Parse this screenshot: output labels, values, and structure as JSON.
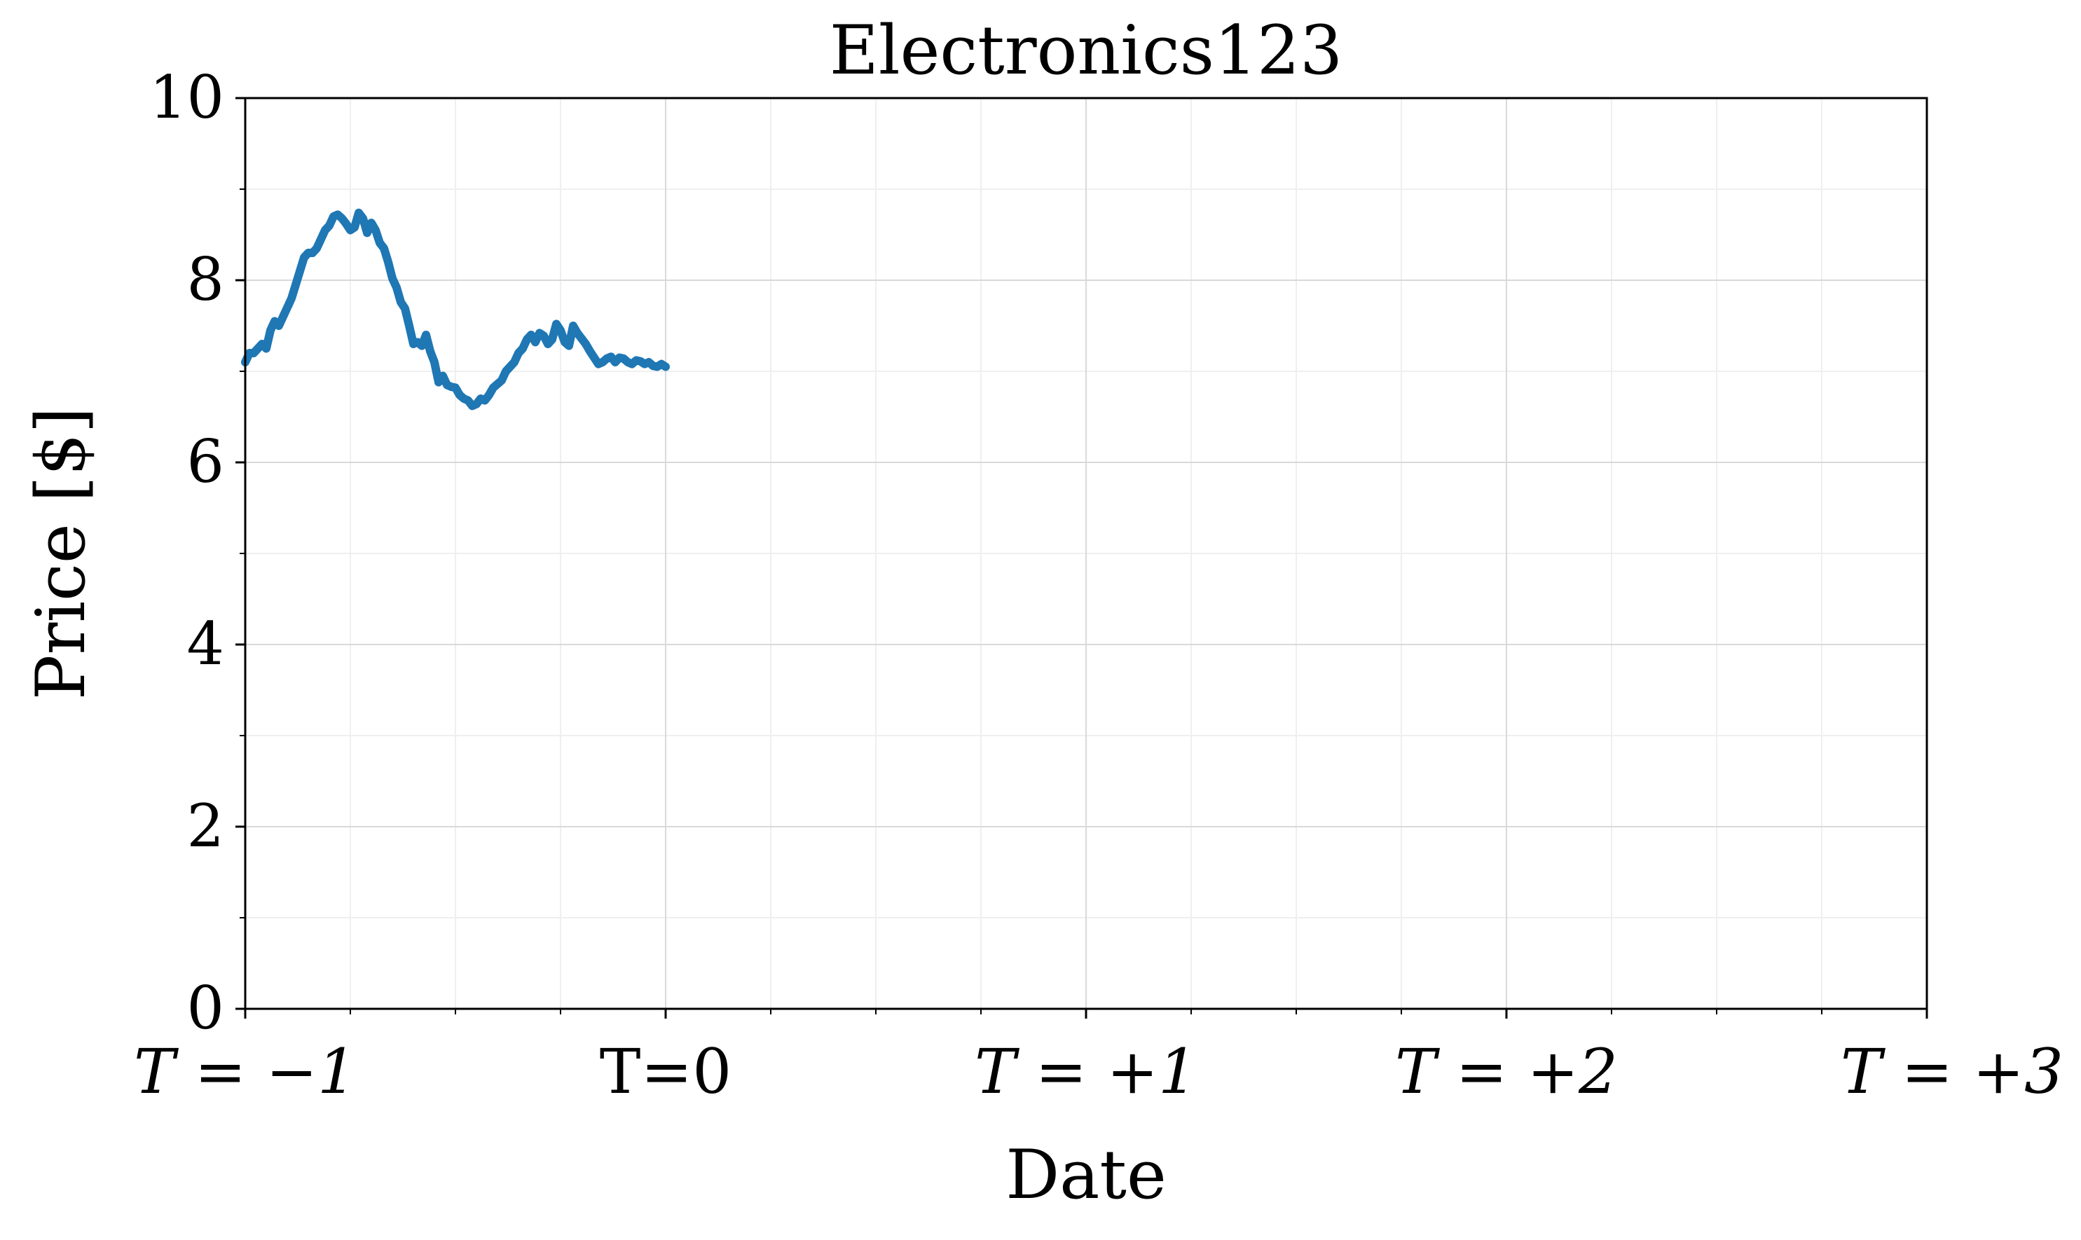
{
  "chart_data": {
    "type": "line",
    "title": "Electronics123",
    "xlabel": "Date",
    "ylabel": "Price [$]",
    "xlim": [
      -1,
      3
    ],
    "ylim": [
      0,
      10
    ],
    "y_ticks": [
      0,
      2,
      4,
      6,
      8,
      10
    ],
    "y_minor_ticks": [
      1,
      3,
      5,
      7,
      9
    ],
    "x_ticks": [
      {
        "value": -1,
        "label": "T = −1",
        "italic": true
      },
      {
        "value": 0,
        "label": "T=0",
        "italic": false
      },
      {
        "value": 1,
        "label": "T = +1",
        "italic": true
      },
      {
        "value": 2,
        "label": "T = +2",
        "italic": true
      },
      {
        "value": 3,
        "label": "T = +3",
        "italic": true
      }
    ],
    "x_minor_ticks": [
      -0.75,
      -0.5,
      -0.25,
      0.25,
      0.5,
      0.75,
      1.25,
      1.5,
      1.75,
      2.25,
      2.5,
      2.75
    ],
    "grid": true,
    "colors": {
      "series": "#1f77b4",
      "grid_major": "#d9d9d9",
      "grid_minor": "#efefef",
      "axis": "#000000"
    },
    "series": [
      {
        "x": [
          -1.0,
          -0.99,
          -0.98,
          -0.97,
          -0.96,
          -0.95,
          -0.94,
          -0.93,
          -0.92,
          -0.91,
          -0.9,
          -0.89,
          -0.88,
          -0.87,
          -0.86,
          -0.85,
          -0.84,
          -0.83,
          -0.82,
          -0.81,
          -0.8,
          -0.79,
          -0.78,
          -0.77,
          -0.76,
          -0.75,
          -0.74,
          -0.73,
          -0.72,
          -0.71,
          -0.7,
          -0.69,
          -0.68,
          -0.67,
          -0.66,
          -0.65,
          -0.64,
          -0.63,
          -0.62,
          -0.61,
          -0.6,
          -0.59,
          -0.58,
          -0.57,
          -0.56,
          -0.55,
          -0.54,
          -0.53,
          -0.52,
          -0.51,
          -0.5,
          -0.49,
          -0.48,
          -0.47,
          -0.46,
          -0.45,
          -0.44,
          -0.43,
          -0.42,
          -0.41,
          -0.4,
          -0.39,
          -0.38,
          -0.37,
          -0.36,
          -0.35,
          -0.34,
          -0.33,
          -0.32,
          -0.31,
          -0.3,
          -0.29,
          -0.28,
          -0.27,
          -0.26,
          -0.25,
          -0.24,
          -0.23,
          -0.22,
          -0.21,
          -0.2,
          -0.19,
          -0.18,
          -0.17,
          -0.16,
          -0.15,
          -0.14,
          -0.13,
          -0.12,
          -0.11,
          -0.1,
          -0.09,
          -0.08,
          -0.07,
          -0.06,
          -0.05,
          -0.04,
          -0.03,
          -0.02,
          -0.01,
          0.0
        ],
        "y": [
          7.1,
          7.2,
          7.2,
          7.25,
          7.3,
          7.25,
          7.45,
          7.55,
          7.5,
          7.6,
          7.7,
          7.8,
          7.95,
          8.1,
          8.25,
          8.3,
          8.3,
          8.35,
          8.45,
          8.55,
          8.6,
          8.7,
          8.72,
          8.68,
          8.62,
          8.55,
          8.58,
          8.74,
          8.68,
          8.52,
          8.63,
          8.55,
          8.41,
          8.35,
          8.2,
          8.02,
          7.92,
          7.76,
          7.69,
          7.5,
          7.3,
          7.32,
          7.28,
          7.4,
          7.22,
          7.1,
          6.88,
          6.95,
          6.85,
          6.83,
          6.82,
          6.74,
          6.7,
          6.68,
          6.62,
          6.64,
          6.7,
          6.68,
          6.74,
          6.82,
          6.86,
          6.9,
          7.0,
          7.05,
          7.1,
          7.2,
          7.25,
          7.35,
          7.4,
          7.32,
          7.42,
          7.39,
          7.3,
          7.35,
          7.52,
          7.45,
          7.32,
          7.28,
          7.5,
          7.42,
          7.36,
          7.3,
          7.22,
          7.15,
          7.08,
          7.1,
          7.14,
          7.16,
          7.1,
          7.15,
          7.14,
          7.1,
          7.08,
          7.12,
          7.11,
          7.08,
          7.1,
          7.06,
          7.05,
          7.08,
          7.05
        ]
      }
    ]
  }
}
